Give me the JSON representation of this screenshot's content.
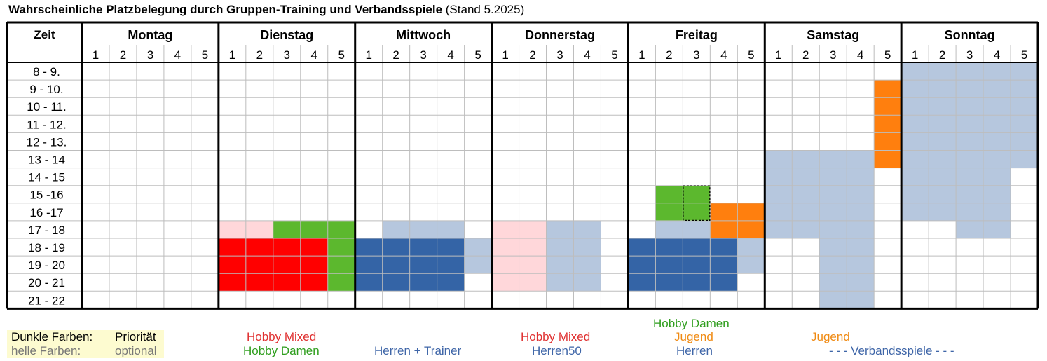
{
  "title": {
    "bold": "Wahrscheinliche Platzbelegung durch Gruppen-Training und Verbandsspiele",
    "suffix": "(Stand 5.2025)"
  },
  "header": {
    "time_label": "Zeit",
    "days": [
      "Montag",
      "Dienstag",
      "Mittwoch",
      "Donnerstag",
      "Freitag",
      "Samstag",
      "Sonntag"
    ],
    "courts": [
      "1",
      "2",
      "3",
      "4",
      "5"
    ]
  },
  "time_slots": [
    "8 - 9.",
    "9 - 10.",
    "10 - 11.",
    "11 - 12.",
    "12 - 13.",
    "13 - 14",
    "14 - 15",
    "15 -16",
    "16 -17",
    "17 - 18",
    "18 - 19",
    "19 - 20",
    "20 - 21",
    "21 - 22"
  ],
  "groups": {
    "HM": {
      "name": "Hobby Mixed",
      "color": "#ff0000"
    },
    "hm": {
      "name": "Hobby Mixed",
      "color": "#ffd7da"
    },
    "HD": {
      "name": "Hobby Damen",
      "color": "#5cb82e"
    },
    "HT": {
      "name": "Herren + Trainer",
      "color": "#3464a6"
    },
    "h": {
      "name": "Herren50 / Herren",
      "color": "#b6c7de"
    },
    "J": {
      "name": "Jugend",
      "color": "#ff7f0e"
    },
    "V": {
      "name": "Verbandsspiele",
      "color": "#b6c7de"
    }
  },
  "bookings": [
    {
      "day": 1,
      "courts": [
        1,
        2
      ],
      "start": 9,
      "end": 10,
      "group": "hm"
    },
    {
      "day": 1,
      "courts": [
        3,
        4,
        5
      ],
      "start": 9,
      "end": 10,
      "group": "HD"
    },
    {
      "day": 1,
      "courts": [
        1,
        2,
        3,
        4
      ],
      "start": 10,
      "end": 13,
      "group": "HM"
    },
    {
      "day": 1,
      "courts": [
        5
      ],
      "start": 10,
      "end": 13,
      "group": "HD"
    },
    {
      "day": 2,
      "courts": [
        2,
        3,
        4
      ],
      "start": 9,
      "end": 10,
      "group": "h"
    },
    {
      "day": 2,
      "courts": [
        1,
        2,
        3,
        4
      ],
      "start": 10,
      "end": 13,
      "group": "HT"
    },
    {
      "day": 2,
      "courts": [
        5
      ],
      "start": 10,
      "end": 12,
      "group": "h"
    },
    {
      "day": 3,
      "courts": [
        1,
        2
      ],
      "start": 9,
      "end": 13,
      "group": "hm"
    },
    {
      "day": 3,
      "courts": [
        3,
        4
      ],
      "start": 9,
      "end": 13,
      "group": "h"
    },
    {
      "day": 4,
      "courts": [
        2
      ],
      "start": 7,
      "end": 9,
      "group": "HD"
    },
    {
      "day": 4,
      "courts": [
        3
      ],
      "start": 7,
      "end": 9,
      "group": "HD",
      "dashed": true
    },
    {
      "day": 4,
      "courts": [
        4,
        5
      ],
      "start": 8,
      "end": 10,
      "group": "J"
    },
    {
      "day": 4,
      "courts": [
        2,
        3
      ],
      "start": 9,
      "end": 10,
      "group": "h"
    },
    {
      "day": 4,
      "courts": [
        1,
        2,
        3,
        4
      ],
      "start": 10,
      "end": 13,
      "group": "HT"
    },
    {
      "day": 4,
      "courts": [
        5
      ],
      "start": 10,
      "end": 12,
      "group": "h"
    },
    {
      "day": 5,
      "courts": [
        5
      ],
      "start": 1,
      "end": 6,
      "group": "J"
    },
    {
      "day": 5,
      "courts": [
        1,
        2,
        3,
        4
      ],
      "start": 5,
      "end": 10,
      "group": "V"
    },
    {
      "day": 5,
      "courts": [
        3,
        4
      ],
      "start": 10,
      "end": 14,
      "group": "V"
    },
    {
      "day": 6,
      "courts": [
        1,
        2,
        3,
        4,
        5
      ],
      "start": 0,
      "end": 6,
      "group": "V"
    },
    {
      "day": 6,
      "courts": [
        1,
        2,
        3,
        4
      ],
      "start": 6,
      "end": 9,
      "group": "V"
    },
    {
      "day": 6,
      "courts": [
        3,
        4
      ],
      "start": 9,
      "end": 10,
      "group": "V"
    }
  ],
  "legend": {
    "dark_label": "Dunkle Farben:",
    "dark_value": "Priorität",
    "light_label": "helle Farben:",
    "light_value": "optional",
    "entries": [
      {
        "text": "Hobby Mixed",
        "color": "#e03131"
      },
      {
        "text": "Hobby Damen",
        "color": "#2f9e1e"
      },
      {
        "text": "Herren + Trainer",
        "color": "#3f66a8"
      },
      {
        "text": "Hobby Mixed",
        "color": "#e03131"
      },
      {
        "text": "Herren50",
        "color": "#3f66a8"
      },
      {
        "text": "Hobby Damen",
        "color": "#2f9e1e"
      },
      {
        "text": "Jugend",
        "color": "#f08a12"
      },
      {
        "text": "Herren",
        "color": "#3f66a8"
      },
      {
        "text": "Jugend",
        "color": "#f08a12"
      },
      {
        "text": "- - -  Verbandsspiele  - - -",
        "color": "#3f66a8"
      }
    ]
  }
}
